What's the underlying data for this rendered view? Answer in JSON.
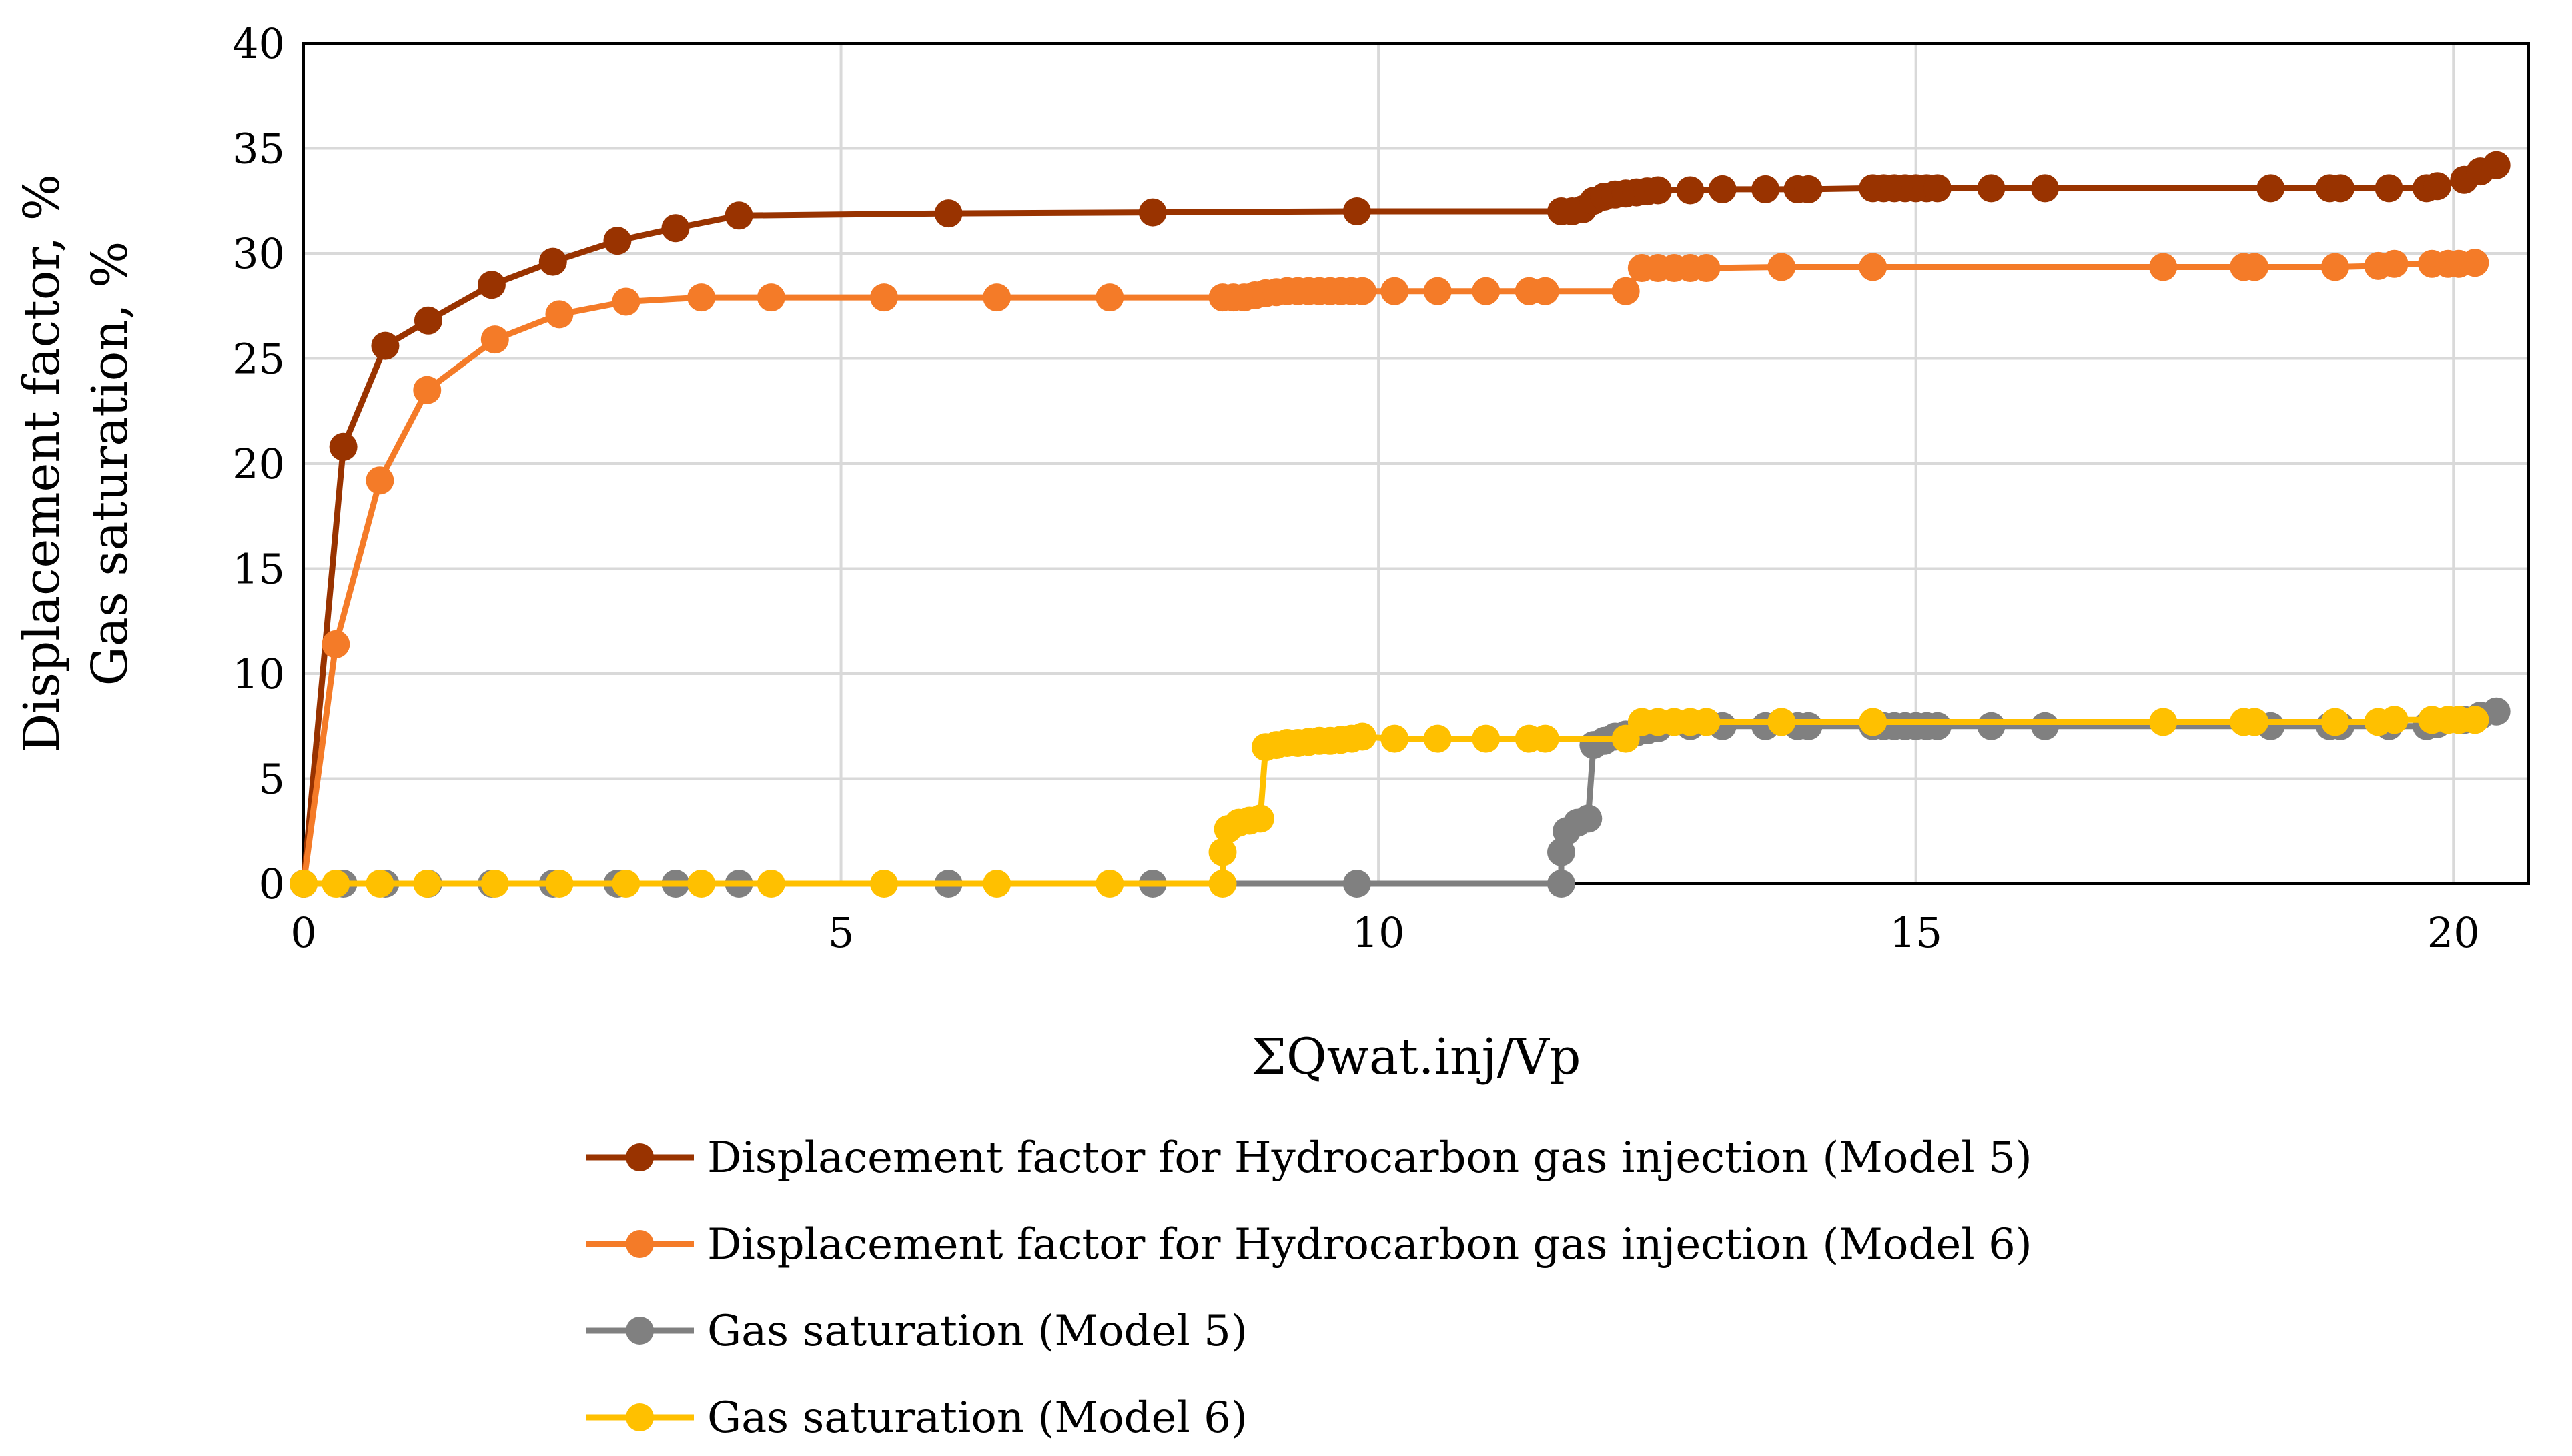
{
  "chart_data": {
    "type": "line",
    "xlabel": "ΣQwat.inj/Vp",
    "ylabel_lines": [
      "Displacement factor, %",
      "Gas saturation, %"
    ],
    "xlim": [
      0,
      20.7
    ],
    "ylim": [
      0,
      40
    ],
    "x_ticks": [
      0,
      5,
      10,
      15,
      20
    ],
    "y_ticks": [
      0,
      5,
      10,
      15,
      20,
      25,
      30,
      35,
      40
    ],
    "grid": true,
    "legend_position": "bottom",
    "series": [
      {
        "name": "Displacement factor for Hydrocarbon gas injection (Model 5)",
        "color": "#993300",
        "x": [
          0,
          0.37,
          0.76,
          1.16,
          1.75,
          2.32,
          2.92,
          3.46,
          4.05,
          6.0,
          7.9,
          9.8,
          11.7,
          11.8,
          11.9,
          12.0,
          12.1,
          12.2,
          12.3,
          12.4,
          12.5,
          12.6,
          12.9,
          13.2,
          13.6,
          13.9,
          14.0,
          14.6,
          14.7,
          14.8,
          14.9,
          15.0,
          15.1,
          15.2,
          15.7,
          16.2,
          18.3,
          18.85,
          18.95,
          19.4,
          19.75,
          19.85,
          20.1,
          20.25,
          20.4
        ],
        "values": [
          0,
          20.8,
          25.6,
          26.8,
          28.5,
          29.6,
          30.6,
          31.2,
          31.8,
          31.9,
          31.95,
          32.0,
          32.0,
          32.0,
          32.1,
          32.5,
          32.7,
          32.8,
          32.85,
          32.9,
          32.95,
          33.0,
          33.0,
          33.05,
          33.05,
          33.05,
          33.05,
          33.1,
          33.1,
          33.1,
          33.1,
          33.1,
          33.1,
          33.1,
          33.1,
          33.1,
          33.1,
          33.1,
          33.1,
          33.1,
          33.1,
          33.2,
          33.5,
          33.9,
          34.2
        ]
      },
      {
        "name": "Displacement factor for Hydrocarbon gas injection (Model 6)",
        "color": "#f47b28",
        "x": [
          0,
          0.3,
          0.71,
          1.15,
          1.78,
          2.38,
          3.0,
          3.7,
          4.35,
          5.4,
          6.45,
          7.5,
          8.55,
          8.65,
          8.75,
          8.85,
          8.95,
          9.05,
          9.15,
          9.25,
          9.35,
          9.45,
          9.55,
          9.65,
          9.75,
          9.85,
          10.15,
          10.55,
          11.0,
          11.4,
          11.55,
          12.3,
          12.45,
          12.6,
          12.75,
          12.9,
          13.05,
          13.75,
          14.6,
          17.3,
          18.05,
          18.15,
          18.9,
          19.3,
          19.45,
          19.8,
          19.95,
          20.05,
          20.2
        ],
        "values": [
          0,
          11.4,
          19.2,
          23.5,
          25.9,
          27.1,
          27.7,
          27.9,
          27.9,
          27.9,
          27.9,
          27.9,
          27.9,
          27.9,
          27.9,
          28.0,
          28.1,
          28.15,
          28.2,
          28.2,
          28.2,
          28.2,
          28.2,
          28.2,
          28.2,
          28.2,
          28.2,
          28.2,
          28.2,
          28.2,
          28.2,
          28.2,
          29.3,
          29.3,
          29.3,
          29.3,
          29.3,
          29.35,
          29.35,
          29.35,
          29.35,
          29.35,
          29.35,
          29.4,
          29.5,
          29.5,
          29.5,
          29.5,
          29.55
        ]
      },
      {
        "name": "Gas saturation (Model 5)",
        "color": "#808080",
        "x": [
          0,
          0.37,
          0.76,
          1.16,
          1.75,
          2.32,
          2.92,
          3.46,
          4.05,
          6.0,
          7.9,
          9.8,
          11.7,
          11.7,
          11.75,
          11.85,
          11.95,
          12.0,
          12.1,
          12.2,
          12.3,
          12.4,
          12.5,
          12.6,
          12.9,
          13.2,
          13.6,
          13.9,
          14.0,
          14.6,
          14.7,
          14.8,
          14.9,
          15.0,
          15.1,
          15.2,
          15.7,
          16.2,
          18.3,
          18.85,
          18.95,
          19.4,
          19.75,
          19.85,
          20.1,
          20.25,
          20.4
        ],
        "values": [
          0,
          0,
          0,
          0,
          0,
          0,
          0,
          0,
          0,
          0,
          0,
          0,
          0,
          1.5,
          2.5,
          2.9,
          3.1,
          6.6,
          6.8,
          7.0,
          7.1,
          7.2,
          7.3,
          7.4,
          7.5,
          7.5,
          7.5,
          7.5,
          7.5,
          7.5,
          7.5,
          7.5,
          7.5,
          7.5,
          7.5,
          7.5,
          7.5,
          7.5,
          7.5,
          7.5,
          7.5,
          7.5,
          7.5,
          7.6,
          7.8,
          8.0,
          8.2
        ]
      },
      {
        "name": "Gas saturation (Model 6)",
        "color": "#ffc000",
        "x": [
          0,
          0.3,
          0.71,
          1.15,
          1.78,
          2.38,
          3.0,
          3.7,
          4.35,
          5.4,
          6.45,
          7.5,
          8.55,
          8.55,
          8.6,
          8.7,
          8.8,
          8.9,
          8.95,
          9.05,
          9.15,
          9.25,
          9.35,
          9.45,
          9.55,
          9.65,
          9.75,
          9.85,
          10.15,
          10.55,
          11.0,
          11.4,
          11.55,
          12.3,
          12.45,
          12.6,
          12.75,
          12.9,
          13.05,
          13.75,
          14.6,
          17.3,
          18.05,
          18.15,
          18.9,
          19.3,
          19.45,
          19.8,
          19.95,
          20.05,
          20.2
        ],
        "values": [
          0,
          0,
          0,
          0,
          0,
          0,
          0,
          0,
          0,
          0,
          0,
          0,
          0,
          1.5,
          2.6,
          2.9,
          3.0,
          3.1,
          6.5,
          6.6,
          6.7,
          6.7,
          6.75,
          6.8,
          6.8,
          6.85,
          6.9,
          7.0,
          6.9,
          6.9,
          6.9,
          6.9,
          6.9,
          6.9,
          7.7,
          7.7,
          7.7,
          7.7,
          7.7,
          7.7,
          7.7,
          7.7,
          7.7,
          7.7,
          7.7,
          7.7,
          7.8,
          7.8,
          7.8,
          7.8,
          7.8
        ]
      }
    ]
  }
}
